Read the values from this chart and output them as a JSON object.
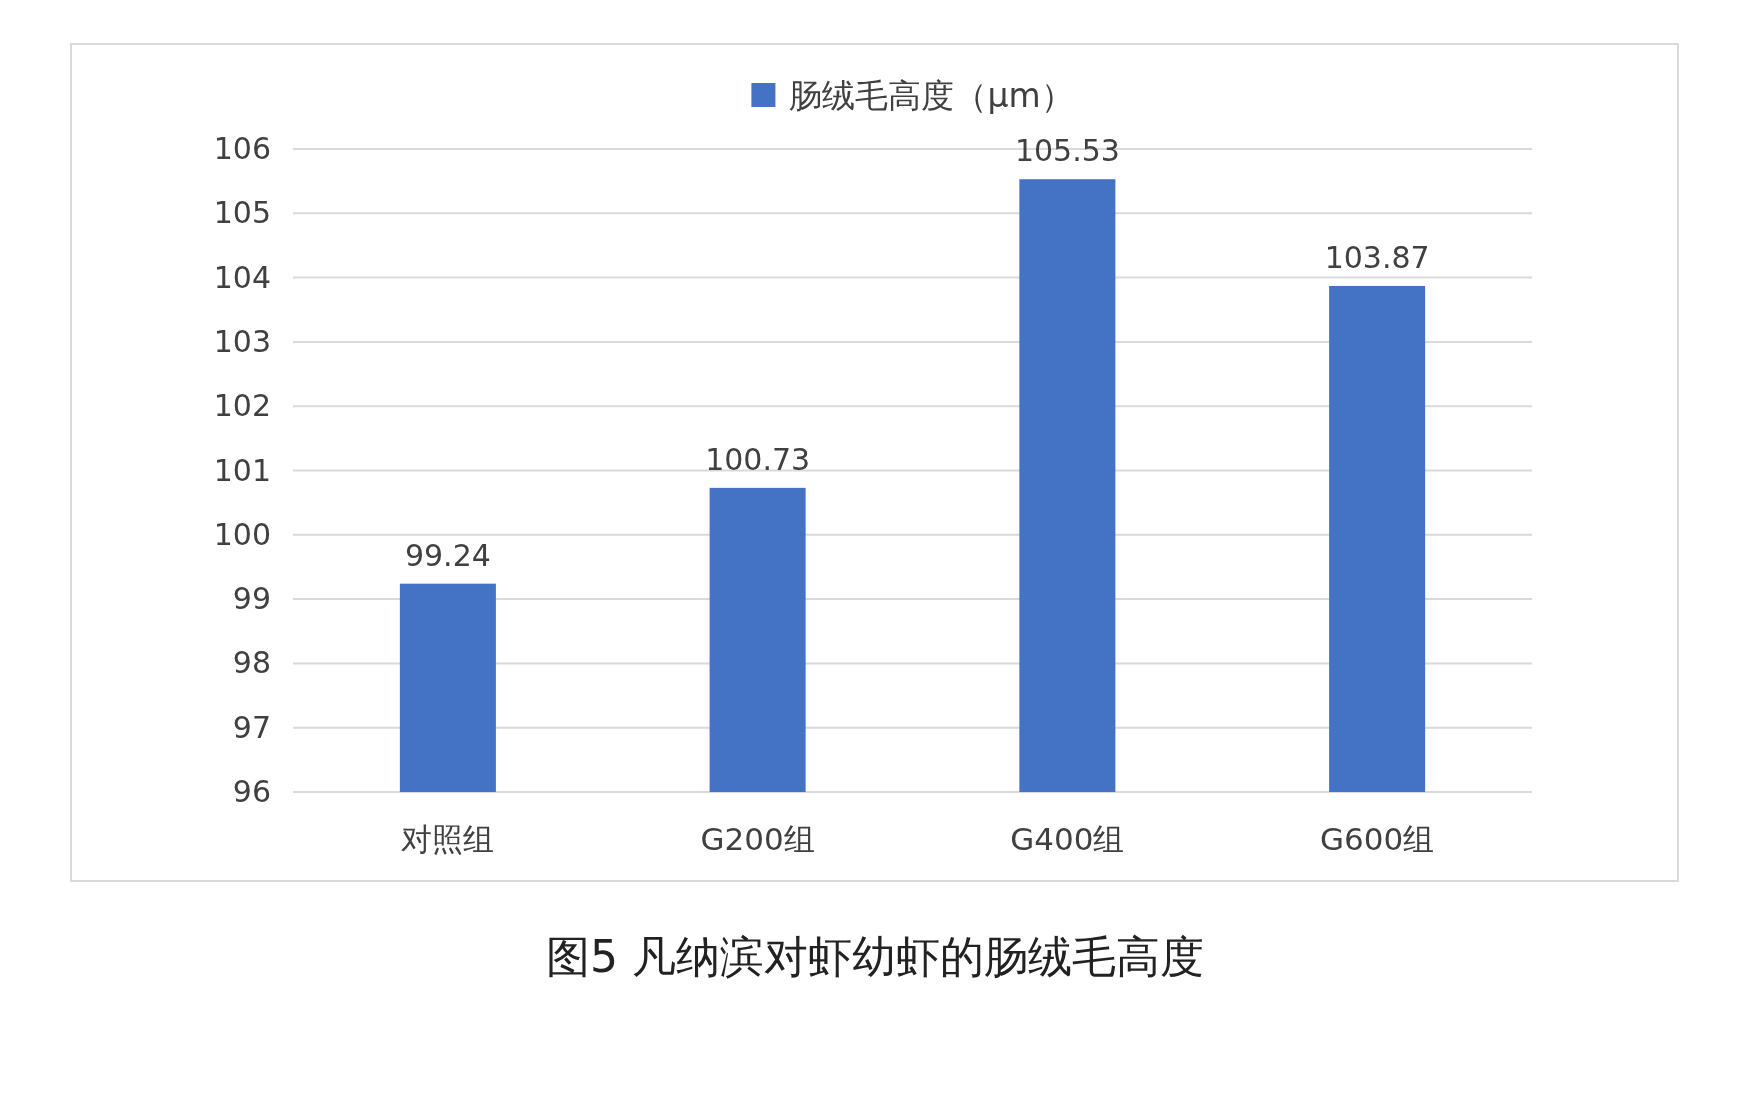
{
  "chart_data": {
    "type": "bar",
    "title": "图5 凡纳滨对虾幼虾的肠绒毛高度",
    "categories": [
      "对照组",
      "G200组",
      "G400组",
      "G600组"
    ],
    "series": [
      {
        "name": "肠绒毛高度（μm）",
        "color": "#4472c4",
        "values": [
          99.24,
          100.73,
          105.53,
          103.87
        ]
      }
    ],
    "ylim": [
      96,
      106
    ],
    "yticks": [
      96,
      97,
      98,
      99,
      100,
      101,
      102,
      103,
      104,
      105,
      106
    ],
    "grid": "y",
    "legend": "top",
    "data_labels": true
  }
}
